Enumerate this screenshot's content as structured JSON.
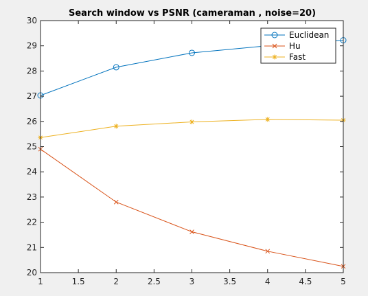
{
  "figure": {
    "background": "#f0f0f0",
    "axes_background": "#ffffff",
    "axis_color": "#262626"
  },
  "chart_data": {
    "type": "line",
    "title": "Search window vs PSNR (cameraman , noise=20)",
    "xlabel": "",
    "ylabel": "",
    "x": [
      1,
      2,
      3,
      4,
      5
    ],
    "xlim": [
      1,
      5
    ],
    "ylim": [
      20,
      30
    ],
    "x_ticks": [
      "1",
      "1.5",
      "2",
      "2.5",
      "3",
      "3.5",
      "4",
      "4.5",
      "5"
    ],
    "y_ticks": [
      "20",
      "21",
      "22",
      "23",
      "24",
      "25",
      "26",
      "27",
      "28",
      "29",
      "30"
    ],
    "grid": false,
    "legend_position": "top-right",
    "series": [
      {
        "name": "Euclidean",
        "values": [
          27.03,
          28.15,
          28.72,
          29.0,
          29.22
        ],
        "color": "#0072bd",
        "marker": "circle"
      },
      {
        "name": "Hu",
        "values": [
          24.9,
          22.8,
          21.62,
          20.85,
          20.25
        ],
        "color": "#d95319",
        "marker": "x"
      },
      {
        "name": "Fast",
        "values": [
          25.36,
          25.81,
          25.98,
          26.08,
          26.05
        ],
        "color": "#edb120",
        "marker": "asterisk"
      }
    ]
  }
}
